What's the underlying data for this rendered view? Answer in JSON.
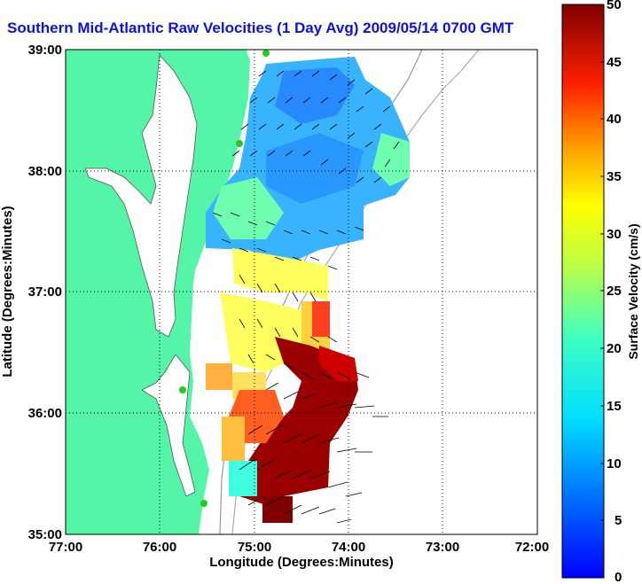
{
  "title": "Southern Mid-Atlantic Raw Velocities (1 Day Avg) 2009/05/14 0700 GMT",
  "map": {
    "x_axis_label": "Longitude (Degrees:Minutes)",
    "y_axis_label": "Latitude (Degrees:Minutes)",
    "x_ticks": [
      "77:00",
      "76:00",
      "75:00",
      "74:00",
      "73:00",
      "72:00"
    ],
    "y_ticks": [
      "39:00",
      "38:00",
      "37:00",
      "36:00",
      "35:00"
    ],
    "lon_range": [
      -77,
      -72
    ],
    "lat_range": [
      35,
      39
    ],
    "grid": true
  },
  "colorbar": {
    "label": "Surface Velocity (cm/s)",
    "ticks": [
      "50",
      "45",
      "40",
      "35",
      "30",
      "25",
      "20",
      "15",
      "10",
      "5",
      "0"
    ],
    "range": [
      0,
      50
    ],
    "colormap": "jet"
  },
  "colors": {
    "land": "#55f5a8",
    "title": "#1010e0",
    "station": "#22cc22"
  }
}
